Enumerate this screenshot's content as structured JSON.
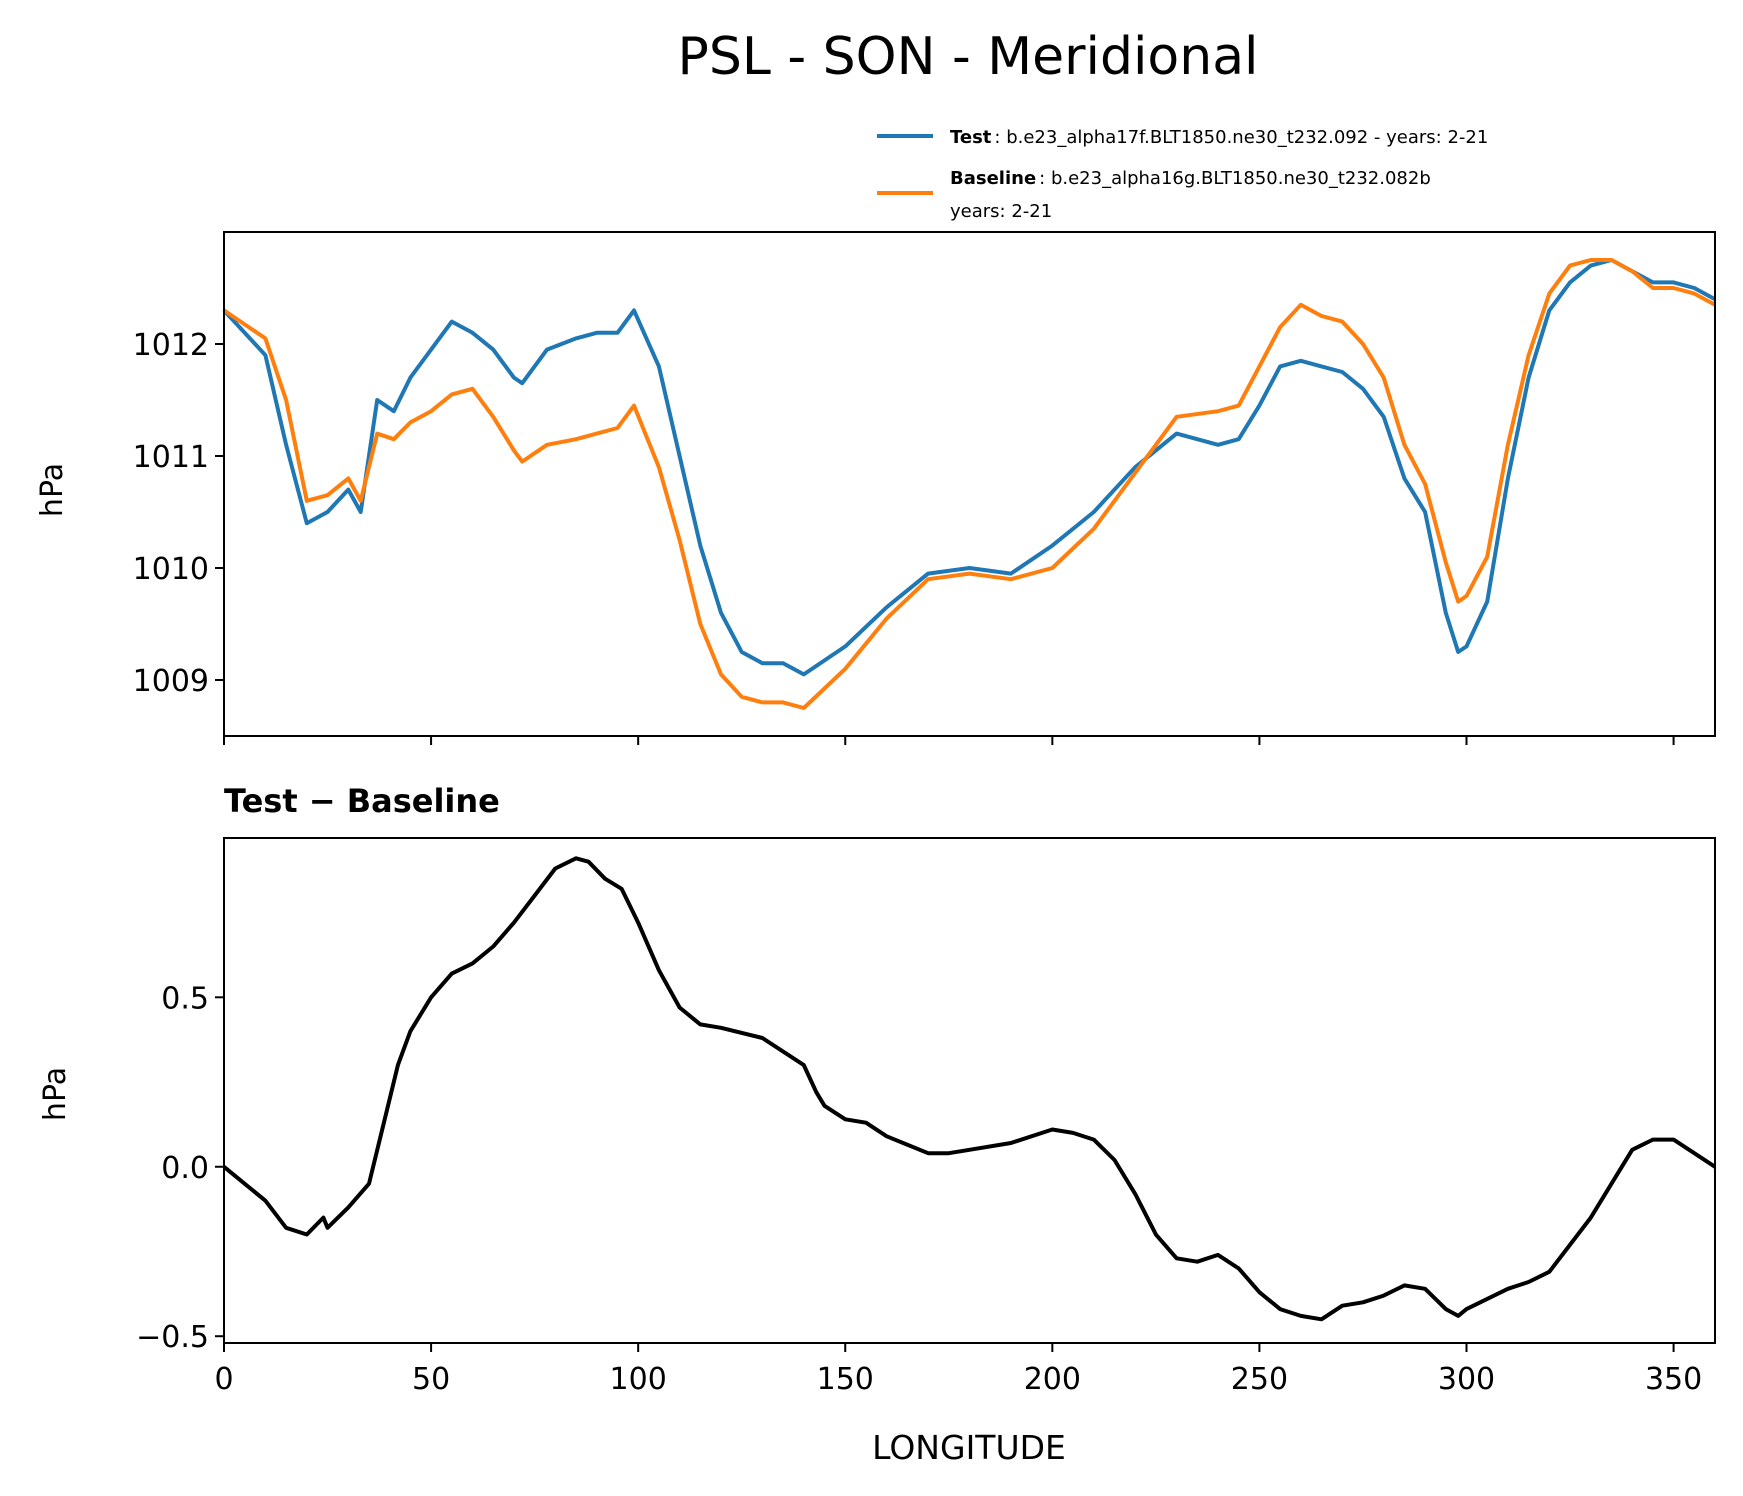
{
  "title": "PSL - SON - Meridional",
  "legend": {
    "test_label": "Test",
    "test_text": ": b.e23_alpha17f.BLT1850.ne30_t232.092 - years: 2-21",
    "baseline_label": "Baseline",
    "baseline_text": ": b.e23_alpha16g.BLT1850.ne30_t232.082b",
    "baseline_text2": "years: 2-21"
  },
  "colors": {
    "test": "#1f77b4",
    "baseline": "#ff7f0e",
    "diff": "#000000"
  },
  "chart_data": [
    {
      "type": "line",
      "ylabel": "hPa",
      "xlim": [
        0,
        360
      ],
      "ylim": [
        1008.5,
        1013.0
      ],
      "yticks": [
        "1009",
        "1010",
        "1011",
        "1012"
      ],
      "x": [
        0,
        10,
        15,
        20,
        25,
        30,
        33,
        37,
        41,
        45,
        50,
        55,
        60,
        65,
        70,
        72,
        78,
        85,
        90,
        95,
        99,
        105,
        110,
        115,
        120,
        125,
        130,
        135,
        140,
        150,
        160,
        170,
        180,
        190,
        200,
        210,
        220,
        230,
        240,
        245,
        250,
        255,
        260,
        265,
        270,
        275,
        280,
        285,
        290,
        295,
        298,
        300,
        305,
        310,
        315,
        320,
        325,
        330,
        335,
        340,
        345,
        350,
        355,
        360
      ],
      "series": [
        {
          "name": "Test",
          "values": [
            1012.3,
            1011.9,
            1011.1,
            1010.4,
            1010.5,
            1010.7,
            1010.5,
            1011.5,
            1011.4,
            1011.7,
            1011.95,
            1012.2,
            1012.1,
            1011.95,
            1011.7,
            1011.65,
            1011.95,
            1012.05,
            1012.1,
            1012.1,
            1012.3,
            1011.8,
            1011.0,
            1010.2,
            1009.6,
            1009.25,
            1009.15,
            1009.15,
            1009.05,
            1009.3,
            1009.65,
            1009.95,
            1010.0,
            1009.95,
            1010.2,
            1010.5,
            1010.9,
            1011.2,
            1011.1,
            1011.15,
            1011.45,
            1011.8,
            1011.85,
            1011.8,
            1011.75,
            1011.6,
            1011.35,
            1010.8,
            1010.5,
            1009.6,
            1009.25,
            1009.3,
            1009.7,
            1010.8,
            1011.7,
            1012.3,
            1012.55,
            1012.7,
            1012.75,
            1012.65,
            1012.55,
            1012.55,
            1012.5,
            1012.4
          ]
        },
        {
          "name": "Baseline",
          "values": [
            1012.3,
            1012.05,
            1011.5,
            1010.6,
            1010.65,
            1010.8,
            1010.6,
            1011.2,
            1011.15,
            1011.3,
            1011.4,
            1011.55,
            1011.6,
            1011.35,
            1011.05,
            1010.95,
            1011.1,
            1011.15,
            1011.2,
            1011.25,
            1011.45,
            1010.9,
            1010.25,
            1009.5,
            1009.05,
            1008.85,
            1008.8,
            1008.8,
            1008.75,
            1009.1,
            1009.55,
            1009.9,
            1009.95,
            1009.9,
            1010.0,
            1010.35,
            1010.85,
            1011.35,
            1011.4,
            1011.45,
            1011.8,
            1012.15,
            1012.35,
            1012.25,
            1012.2,
            1012.0,
            1011.7,
            1011.1,
            1010.75,
            1010.05,
            1009.7,
            1009.75,
            1010.1,
            1011.1,
            1011.9,
            1012.45,
            1012.7,
            1012.75,
            1012.75,
            1012.65,
            1012.5,
            1012.5,
            1012.45,
            1012.35
          ]
        }
      ]
    },
    {
      "type": "line",
      "title": "Test − Baseline",
      "xlabel": "LONGITUDE",
      "ylabel": "hPa",
      "xlim": [
        0,
        360
      ],
      "ylim": [
        -0.52,
        0.97
      ],
      "yticks": [
        "−0.5",
        "0.0",
        "0.5"
      ],
      "xticks": [
        "0",
        "50",
        "100",
        "150",
        "200",
        "250",
        "300",
        "350"
      ],
      "x": [
        0,
        10,
        15,
        20,
        24,
        25,
        30,
        35,
        38,
        42,
        45,
        50,
        55,
        60,
        65,
        70,
        75,
        80,
        85,
        88,
        92,
        96,
        100,
        105,
        110,
        115,
        120,
        130,
        140,
        143,
        145,
        150,
        155,
        160,
        170,
        175,
        180,
        190,
        200,
        205,
        210,
        215,
        220,
        225,
        230,
        235,
        240,
        245,
        250,
        255,
        260,
        265,
        270,
        275,
        280,
        285,
        290,
        295,
        298,
        300,
        305,
        310,
        315,
        320,
        330,
        340,
        345,
        350,
        355,
        360
      ],
      "series": [
        {
          "name": "Test − Baseline",
          "values": [
            0.0,
            -0.1,
            -0.18,
            -0.2,
            -0.15,
            -0.18,
            -0.12,
            -0.05,
            0.1,
            0.3,
            0.4,
            0.5,
            0.57,
            0.6,
            0.65,
            0.72,
            0.8,
            0.88,
            0.91,
            0.9,
            0.85,
            0.82,
            0.72,
            0.58,
            0.47,
            0.42,
            0.41,
            0.38,
            0.3,
            0.22,
            0.18,
            0.14,
            0.13,
            0.09,
            0.04,
            0.04,
            0.05,
            0.07,
            0.11,
            0.1,
            0.08,
            0.02,
            -0.08,
            -0.2,
            -0.27,
            -0.28,
            -0.26,
            -0.3,
            -0.37,
            -0.42,
            -0.44,
            -0.45,
            -0.41,
            -0.4,
            -0.38,
            -0.35,
            -0.36,
            -0.42,
            -0.44,
            -0.42,
            -0.39,
            -0.36,
            -0.34,
            -0.31,
            -0.15,
            0.05,
            0.08,
            0.08,
            0.04,
            0.0
          ]
        }
      ]
    }
  ]
}
